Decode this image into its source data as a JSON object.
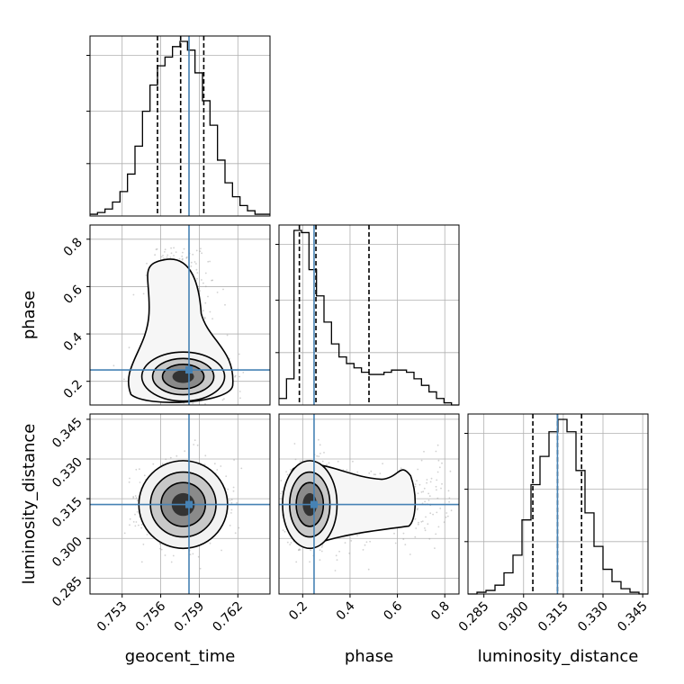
{
  "chart_data": {
    "type": "corner",
    "parameters": [
      "geocent_time",
      "phase",
      "luminosity_distance"
    ],
    "truths": {
      "geocent_time": 0.7582,
      "phase": 0.248,
      "luminosity_distance": 0.3128
    },
    "truth_color": "#4682b4",
    "ranges": {
      "geocent_time": [
        0.7505,
        0.7645
      ],
      "phase": [
        0.1,
        0.86
      ],
      "luminosity_distance": [
        0.279,
        0.347
      ]
    },
    "ticks": {
      "geocent_time": {
        "values": [
          0.753,
          0.756,
          0.759,
          0.762
        ],
        "labels": [
          "0.753",
          "0.756",
          "0.759",
          "0.762"
        ]
      },
      "phase": {
        "values": [
          0.2,
          0.4,
          0.6,
          0.8
        ],
        "labels": [
          "0.2",
          "0.4",
          "0.6",
          "0.8"
        ]
      },
      "luminosity_distance": {
        "values": [
          0.285,
          0.3,
          0.315,
          0.33,
          0.345
        ],
        "labels": [
          "0.285",
          "0.300",
          "0.315",
          "0.330",
          "0.345"
        ]
      }
    },
    "histograms": {
      "geocent_time": {
        "bins": [
          0.7505,
          0.7645
        ],
        "counts": [
          1,
          2,
          4,
          8,
          14,
          24,
          40,
          60,
          75,
          86,
          91,
          97,
          100,
          95,
          82,
          66,
          52,
          32,
          19,
          11,
          6,
          3,
          1,
          1
        ],
        "quantiles": [
          0.75575,
          0.75755,
          0.75935
        ]
      },
      "phase": {
        "bins": [
          0.1,
          0.86
        ],
        "counts": [
          3,
          12,
          80,
          79,
          62,
          50,
          38,
          28,
          22,
          19,
          17,
          15,
          14,
          14,
          15,
          16,
          16,
          15,
          12,
          9,
          6,
          3,
          1,
          0
        ],
        "quantiles": [
          0.186,
          0.256,
          0.48
        ]
      },
      "luminosity_distance": {
        "bins": [
          0.279,
          0.347
        ],
        "counts": [
          0,
          1,
          2,
          5,
          12,
          22,
          42,
          62,
          78,
          92,
          99,
          92,
          70,
          46,
          27,
          14,
          7,
          3,
          1,
          0
        ],
        "quantiles": [
          0.3035,
          0.3128,
          0.3219
        ]
      }
    },
    "grid": true
  }
}
